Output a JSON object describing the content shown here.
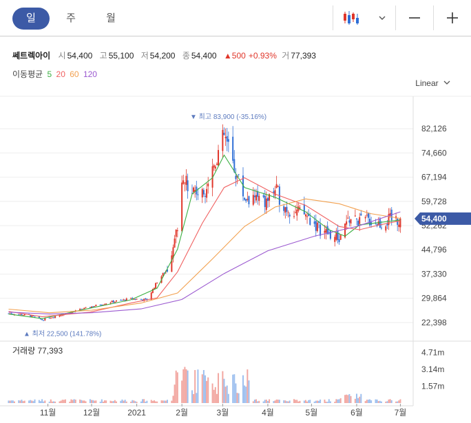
{
  "tabs": [
    {
      "label": "일",
      "active": true
    },
    {
      "label": "주",
      "active": false
    },
    {
      "label": "월",
      "active": false
    }
  ],
  "toolbar": {
    "chart_type_icon": "candlestick-icon",
    "dropdown_icon": "chevron-down-icon",
    "zoom_out": "—",
    "zoom_in": "+"
  },
  "stock": {
    "name": "쎄트렉아이",
    "open_label": "시",
    "open": "54,400",
    "high_label": "고",
    "high": "55,100",
    "low_label": "저",
    "low": "54,200",
    "close_label": "종",
    "close": "54,400",
    "change": "▲500",
    "change_pct": "+0.93%",
    "volume_label": "거",
    "volume": "77,393"
  },
  "ma_legend": {
    "label": "이동평균",
    "items": [
      {
        "period": "5",
        "color": "#3cb043"
      },
      {
        "period": "20",
        "color": "#f06060"
      },
      {
        "period": "60",
        "color": "#f2a04e"
      },
      {
        "period": "120",
        "color": "#9b59d0"
      }
    ]
  },
  "scale": {
    "label": "Linear",
    "icon": "chevron-down-icon"
  },
  "colors": {
    "up": "#e0362a",
    "down": "#2f6fd6",
    "price_tag": "#3c5aa6"
  },
  "chart_data": {
    "type": "candlestick",
    "price_ticks": [
      "82,126",
      "74,660",
      "67,194",
      "59,728",
      "52,262",
      "44,796",
      "37,330",
      "29,864",
      "22,398"
    ],
    "price_tick_values": [
      82126,
      74660,
      67194,
      59728,
      52262,
      44796,
      37330,
      29864,
      22398
    ],
    "ylim": [
      17500,
      90000
    ],
    "current_price": 54400,
    "current_price_label": "54,400",
    "max_marker": {
      "text": "▼ 최고 83,900 (-35.16%)",
      "value": 83900
    },
    "min_marker": {
      "text": "▲ 최저 22,500 (141.78%)",
      "value": 22500
    },
    "x_labels": [
      "11월",
      "12월",
      "2021",
      "2월",
      "3월",
      "4월",
      "5월",
      "6월",
      "7월"
    ],
    "volume_panel": {
      "title": "거래량",
      "value": "77,393",
      "ticks": [
        "4.71m",
        "3.14m",
        "1.57m"
      ],
      "tick_values": [
        4710000,
        3140000,
        1570000
      ],
      "ylim": [
        0,
        5500000
      ]
    },
    "close_series": [
      {
        "d": "2020-10-05",
        "c": 25200
      },
      {
        "d": "2020-10-19",
        "c": 24600
      },
      {
        "d": "2020-10-28",
        "c": 23200
      },
      {
        "d": "2020-11-02",
        "c": 23900
      },
      {
        "d": "2020-11-16",
        "c": 25400
      },
      {
        "d": "2020-11-30",
        "c": 27200
      },
      {
        "d": "2020-12-14",
        "c": 28700
      },
      {
        "d": "2020-12-28",
        "c": 29700
      },
      {
        "d": "2021-01-08",
        "c": 29400
      },
      {
        "d": "2021-01-15",
        "c": 35000
      },
      {
        "d": "2021-01-22",
        "c": 39000
      },
      {
        "d": "2021-01-29",
        "c": 52000
      },
      {
        "d": "2021-02-01",
        "c": 66000
      },
      {
        "d": "2021-02-08",
        "c": 64000
      },
      {
        "d": "2021-02-15",
        "c": 61500
      },
      {
        "d": "2021-02-22",
        "c": 70000
      },
      {
        "d": "2021-03-02",
        "c": 80000
      },
      {
        "d": "2021-03-09",
        "c": 70000
      },
      {
        "d": "2021-03-16",
        "c": 61000
      },
      {
        "d": "2021-03-23",
        "c": 61000
      },
      {
        "d": "2021-03-30",
        "c": 59000
      },
      {
        "d": "2021-04-06",
        "c": 63500
      },
      {
        "d": "2021-04-13",
        "c": 58000
      },
      {
        "d": "2021-04-20",
        "c": 56500
      },
      {
        "d": "2021-04-27",
        "c": 55500
      },
      {
        "d": "2021-05-06",
        "c": 51500
      },
      {
        "d": "2021-05-13",
        "c": 49500
      },
      {
        "d": "2021-05-20",
        "c": 48200
      },
      {
        "d": "2021-05-27",
        "c": 54500
      },
      {
        "d": "2021-06-03",
        "c": 53500
      },
      {
        "d": "2021-06-10",
        "c": 54000
      },
      {
        "d": "2021-06-17",
        "c": 53000
      },
      {
        "d": "2021-06-24",
        "c": 54000
      },
      {
        "d": "2021-07-01",
        "c": 54400
      }
    ],
    "ma_series": [
      {
        "name": "5",
        "color": "#3cb043",
        "points": [
          [
            "2020-10-05",
            25000
          ],
          [
            "2020-10-28",
            23600
          ],
          [
            "2020-11-30",
            26800
          ],
          [
            "2020-12-28",
            29400
          ],
          [
            "2021-01-15",
            33000
          ],
          [
            "2021-01-29",
            45000
          ],
          [
            "2021-02-08",
            62000
          ],
          [
            "2021-02-22",
            67000
          ],
          [
            "2021-03-02",
            74000
          ],
          [
            "2021-03-16",
            64000
          ],
          [
            "2021-04-06",
            61000
          ],
          [
            "2021-04-27",
            56500
          ],
          [
            "2021-05-13",
            51000
          ],
          [
            "2021-05-24",
            49000
          ],
          [
            "2021-06-03",
            52500
          ],
          [
            "2021-07-01",
            54000
          ]
        ]
      },
      {
        "name": "20",
        "color": "#f06060",
        "points": [
          [
            "2020-10-05",
            25800
          ],
          [
            "2020-10-28",
            24200
          ],
          [
            "2020-11-30",
            25600
          ],
          [
            "2020-12-28",
            28400
          ],
          [
            "2021-01-15",
            30000
          ],
          [
            "2021-01-29",
            38000
          ],
          [
            "2021-02-15",
            53000
          ],
          [
            "2021-03-02",
            64000
          ],
          [
            "2021-03-16",
            67000
          ],
          [
            "2021-04-06",
            62000
          ],
          [
            "2021-04-27",
            58500
          ],
          [
            "2021-05-20",
            52000
          ],
          [
            "2021-06-03",
            51000
          ],
          [
            "2021-06-17",
            52500
          ],
          [
            "2021-07-01",
            53800
          ]
        ]
      },
      {
        "name": "60",
        "color": "#f2a04e",
        "points": [
          [
            "2020-10-05",
            26500
          ],
          [
            "2020-11-02",
            25400
          ],
          [
            "2020-12-01",
            26200
          ],
          [
            "2021-01-04",
            28400
          ],
          [
            "2021-01-29",
            31500
          ],
          [
            "2021-02-22",
            42000
          ],
          [
            "2021-03-16",
            52000
          ],
          [
            "2021-04-06",
            58000
          ],
          [
            "2021-04-27",
            60500
          ],
          [
            "2021-05-20",
            59000
          ],
          [
            "2021-06-10",
            56000
          ],
          [
            "2021-07-01",
            54500
          ]
        ]
      },
      {
        "name": "120",
        "color": "#9b59d0",
        "points": [
          [
            "2020-10-05",
            25600
          ],
          [
            "2020-11-02",
            25000
          ],
          [
            "2020-12-01",
            25400
          ],
          [
            "2021-01-04",
            26600
          ],
          [
            "2021-02-01",
            29500
          ],
          [
            "2021-03-02",
            37500
          ],
          [
            "2021-04-01",
            44500
          ],
          [
            "2021-05-03",
            49000
          ],
          [
            "2021-06-01",
            52000
          ],
          [
            "2021-07-01",
            56500
          ]
        ]
      }
    ]
  }
}
